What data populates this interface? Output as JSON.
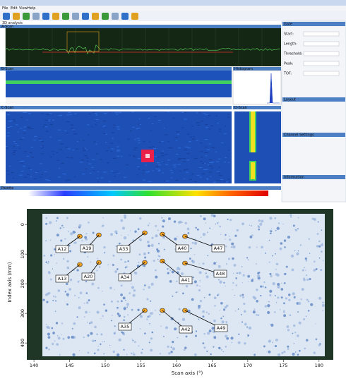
{
  "window": {
    "menu": [
      "File",
      "Edit",
      "View",
      "Help"
    ],
    "tab": "3D analysis",
    "panels": {
      "a_scan": "A-Scan",
      "b_scan": "B-Scan",
      "c_scan": "C-Scan",
      "histogram": "Histogram",
      "d_scan": "D-Scan",
      "palette": "Palette"
    },
    "side": {
      "gate": "Gate",
      "fields": [
        "Start:",
        "Length:",
        "Threshold:",
        "Peak:",
        "TOF:"
      ],
      "layout": "Layout",
      "channel": "Channel Settings",
      "information": "Information"
    }
  },
  "figure": {
    "y_label": "Index axis (mm)",
    "x_label": "Scan axis (°)",
    "xlim": [
      139.2,
      181.8
    ],
    "ylim": [
      -48,
      445
    ],
    "xticks": [
      140,
      145,
      150,
      155,
      160,
      165,
      170,
      175,
      180
    ],
    "yticks": [
      0,
      100,
      200,
      300,
      400
    ],
    "annotations": [
      "A12",
      "A19",
      "A33",
      "A40",
      "A47",
      "A13",
      "A20",
      "A34",
      "A41",
      "A48",
      "A35",
      "A42",
      "A49"
    ]
  }
}
